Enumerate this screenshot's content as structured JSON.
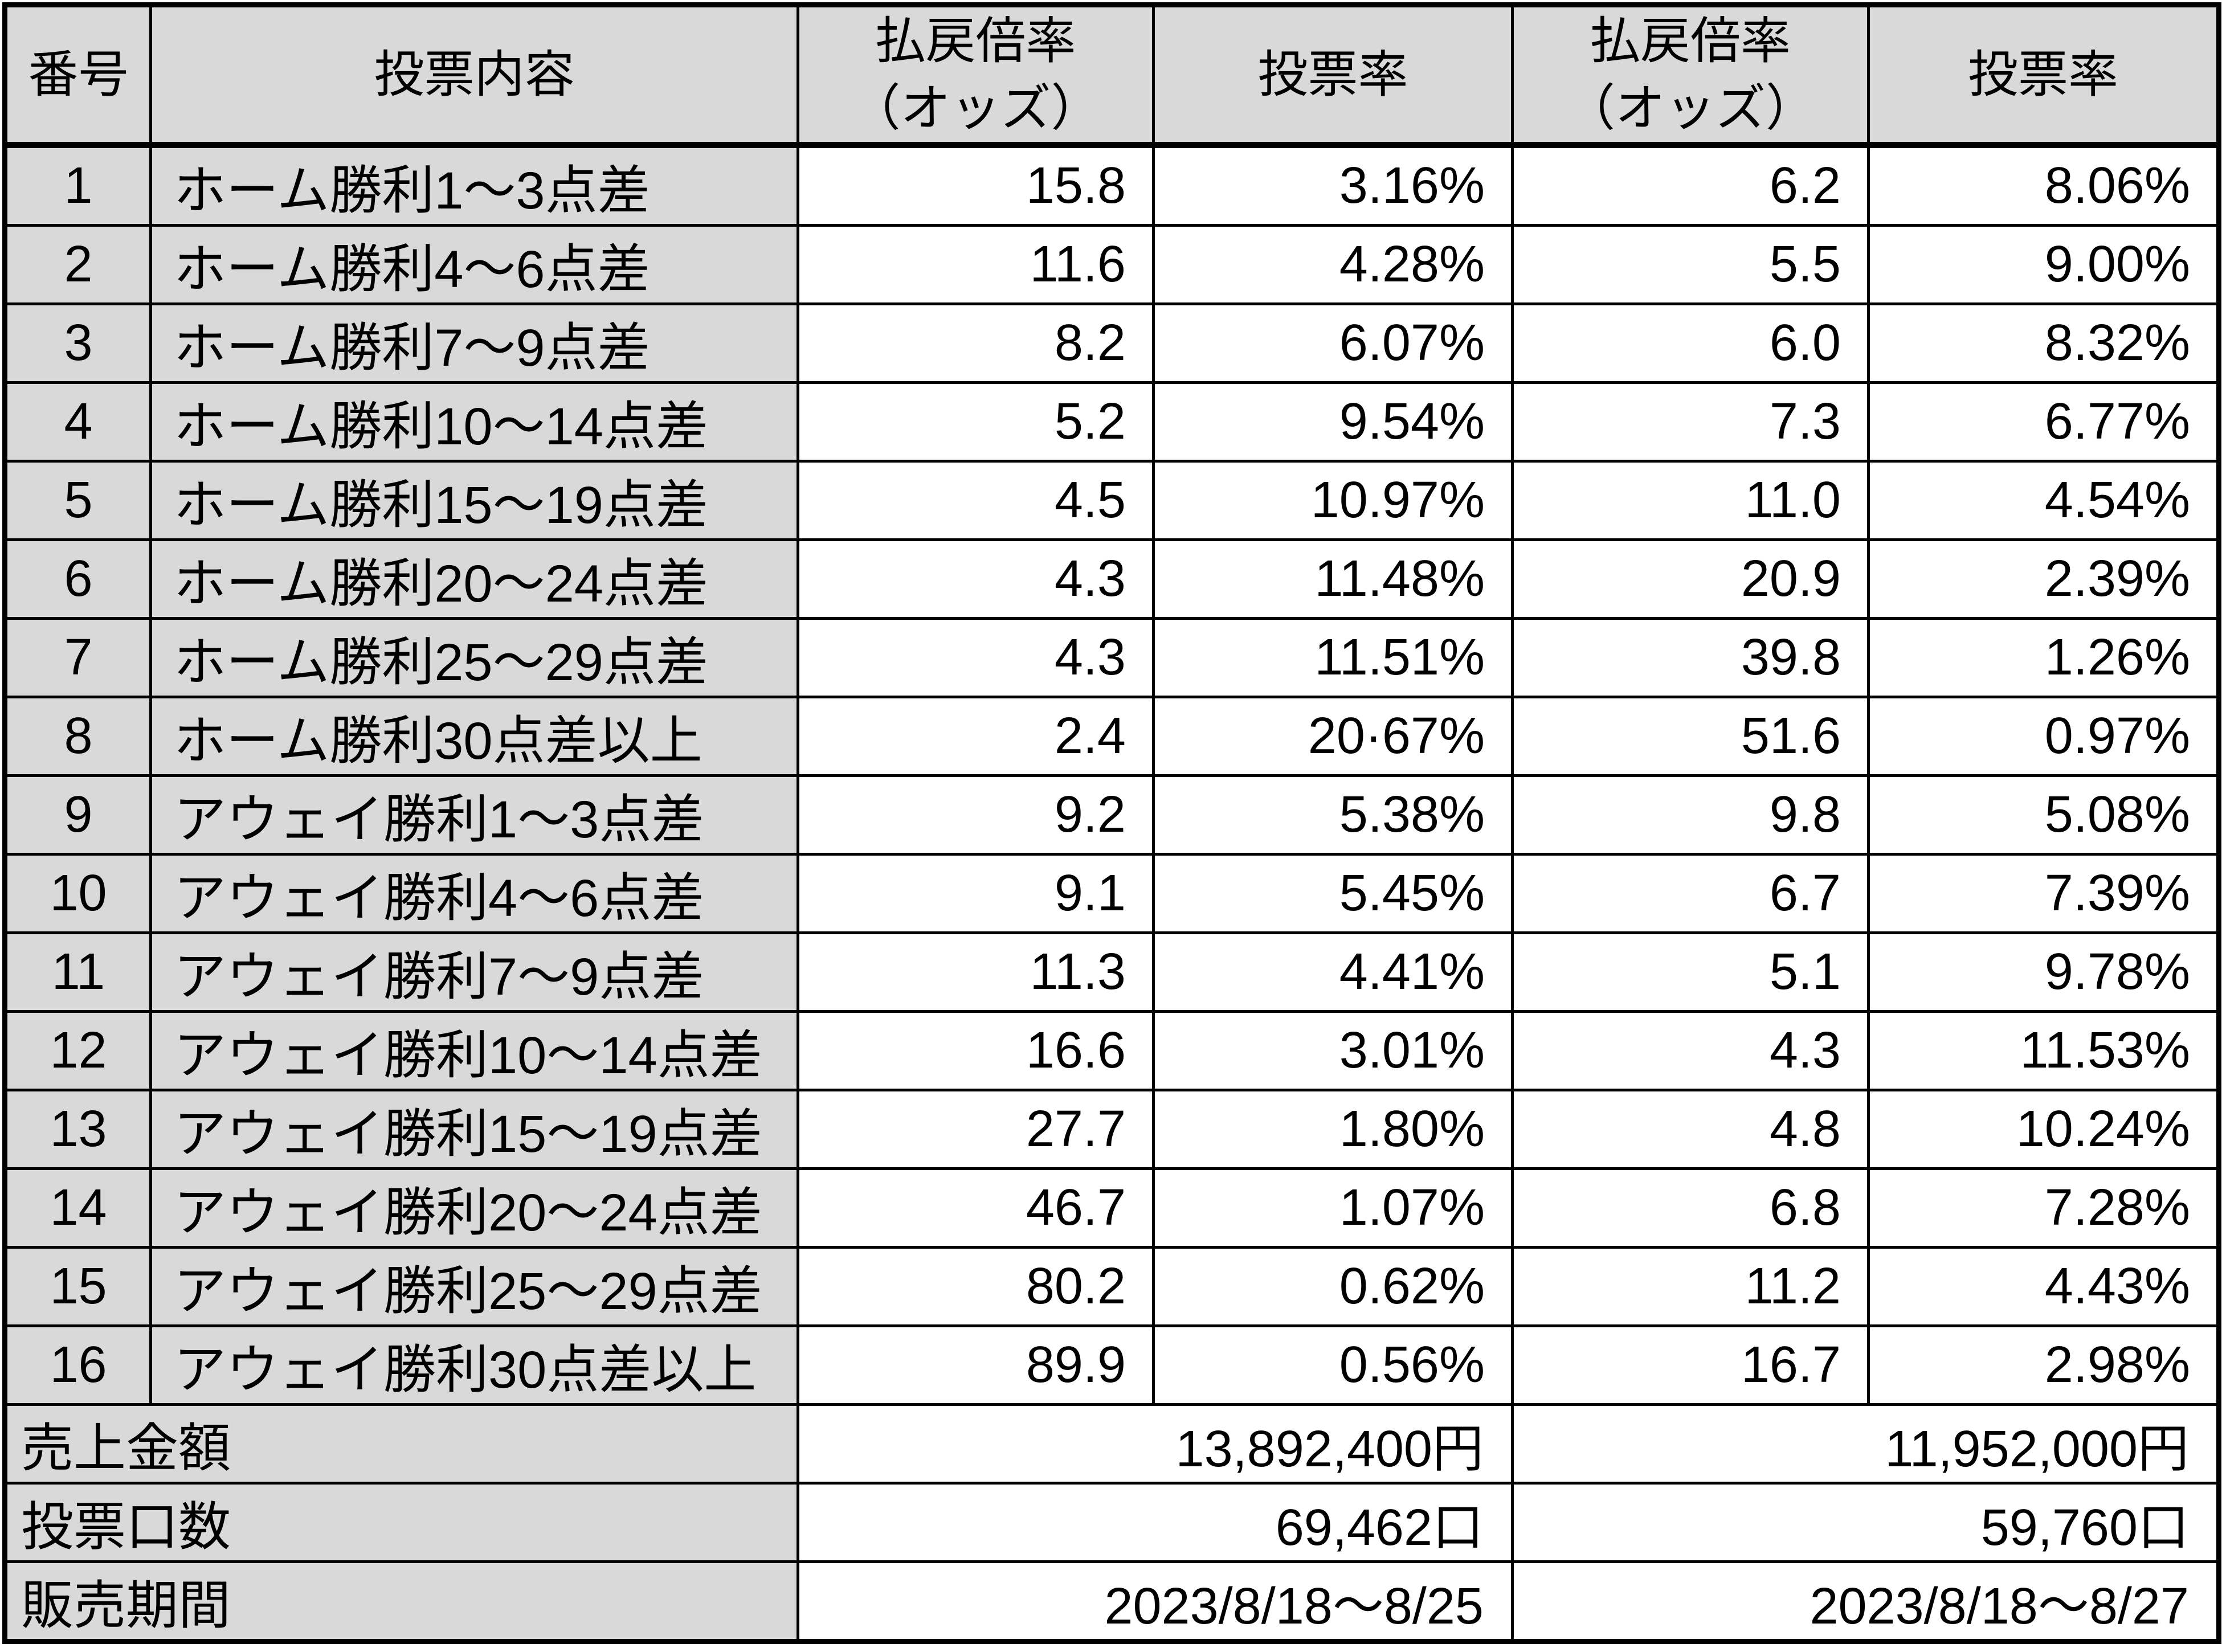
{
  "header": {
    "no": "番号",
    "content": "投票内容",
    "odds_line1": "払戻倍率",
    "odds_line2": "（オッズ）",
    "rate": "投票率"
  },
  "rows": [
    {
      "no": "1",
      "content": "ホーム勝利1～3点差",
      "odds1": "15.8",
      "rate1": "3.16%",
      "odds2": "6.2",
      "rate2": "8.06%"
    },
    {
      "no": "2",
      "content": "ホーム勝利4～6点差",
      "odds1": "11.6",
      "rate1": "4.28%",
      "odds2": "5.5",
      "rate2": "9.00%"
    },
    {
      "no": "3",
      "content": "ホーム勝利7～9点差",
      "odds1": "8.2",
      "rate1": "6.07%",
      "odds2": "6.0",
      "rate2": "8.32%"
    },
    {
      "no": "4",
      "content": "ホーム勝利10～14点差",
      "odds1": "5.2",
      "rate1": "9.54%",
      "odds2": "7.3",
      "rate2": "6.77%"
    },
    {
      "no": "5",
      "content": "ホーム勝利15～19点差",
      "odds1": "4.5",
      "rate1": "10.97%",
      "odds2": "11.0",
      "rate2": "4.54%"
    },
    {
      "no": "6",
      "content": "ホーム勝利20～24点差",
      "odds1": "4.3",
      "rate1": "11.48%",
      "odds2": "20.9",
      "rate2": "2.39%"
    },
    {
      "no": "7",
      "content": "ホーム勝利25～29点差",
      "odds1": "4.3",
      "rate1": "11.51%",
      "odds2": "39.8",
      "rate2": "1.26%"
    },
    {
      "no": "8",
      "content": "ホーム勝利30点差以上",
      "odds1": "2.4",
      "rate1": "20·67%",
      "odds2": "51.6",
      "rate2": "0.97%"
    },
    {
      "no": "9",
      "content": "アウェイ勝利1～3点差",
      "odds1": "9.2",
      "rate1": "5.38%",
      "odds2": "9.8",
      "rate2": "5.08%"
    },
    {
      "no": "10",
      "content": "アウェイ勝利4～6点差",
      "odds1": "9.1",
      "rate1": "5.45%",
      "odds2": "6.7",
      "rate2": "7.39%"
    },
    {
      "no": "11",
      "content": "アウェイ勝利7～9点差",
      "odds1": "11.3",
      "rate1": "4.41%",
      "odds2": "5.1",
      "rate2": "9.78%"
    },
    {
      "no": "12",
      "content": "アウェイ勝利10～14点差",
      "odds1": "16.6",
      "rate1": "3.01%",
      "odds2": "4.3",
      "rate2": "11.53%"
    },
    {
      "no": "13",
      "content": "アウェイ勝利15～19点差",
      "odds1": "27.7",
      "rate1": "1.80%",
      "odds2": "4.8",
      "rate2": "10.24%"
    },
    {
      "no": "14",
      "content": "アウェイ勝利20～24点差",
      "odds1": "46.7",
      "rate1": "1.07%",
      "odds2": "6.8",
      "rate2": "7.28%"
    },
    {
      "no": "15",
      "content": "アウェイ勝利25～29点差",
      "odds1": "80.2",
      "rate1": "0.62%",
      "odds2": "11.2",
      "rate2": "4.43%"
    },
    {
      "no": "16",
      "content": "アウェイ勝利30点差以上",
      "odds1": "89.9",
      "rate1": "0.56%",
      "odds2": "16.7",
      "rate2": "2.98%"
    }
  ],
  "footer": {
    "sales_label": "売上金額",
    "sales_value1": "13,892,400円",
    "sales_value2": "11,952,000円",
    "units_label": "投票口数",
    "units_value1": "69,462口",
    "units_value2": "59,760口",
    "period_label": "販売期間",
    "period_value1": "2023/8/18～8/25",
    "period_value2": "2023/8/18～8/27"
  }
}
